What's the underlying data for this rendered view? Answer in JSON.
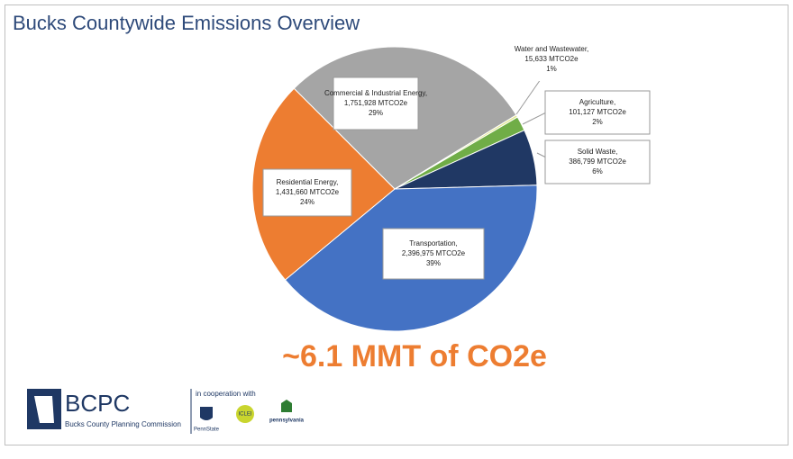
{
  "chart_data": {
    "type": "pie",
    "title": "Bucks Countywide Emissions Overview",
    "categories": [
      "Commercial & Industrial Energy,",
      "Water and  Wastewater,",
      "Agriculture,",
      "Solid Waste,",
      "Transportation,",
      "Residential Energy,"
    ],
    "values": [
      1751928,
      15633,
      101127,
      386799,
      2396975,
      1431660
    ],
    "value_labels": [
      "1,751,928 MTCO2e",
      "15,633 MTCO2e",
      "101,127 MTCO2e",
      "386,799 MTCO2e",
      "2,396,975 MTCO2e",
      "1,431,660 MTCO2e"
    ],
    "percent_labels": [
      "29%",
      "1%",
      "2%",
      "6%",
      "39%",
      "24%"
    ],
    "colors": [
      "#a5a5a5",
      "#e3e88f",
      "#70ad47",
      "#203864",
      "#4472c4",
      "#ed7d31"
    ],
    "total_label": "~6.1 MMT of CO2e"
  },
  "footer": {
    "logo": "BCPC",
    "logo_subtitle": "Bucks County Planning Commission",
    "cooperation": "in cooperation with",
    "partners": [
      "PennState",
      "ICLEI",
      "pennsylvania"
    ]
  }
}
